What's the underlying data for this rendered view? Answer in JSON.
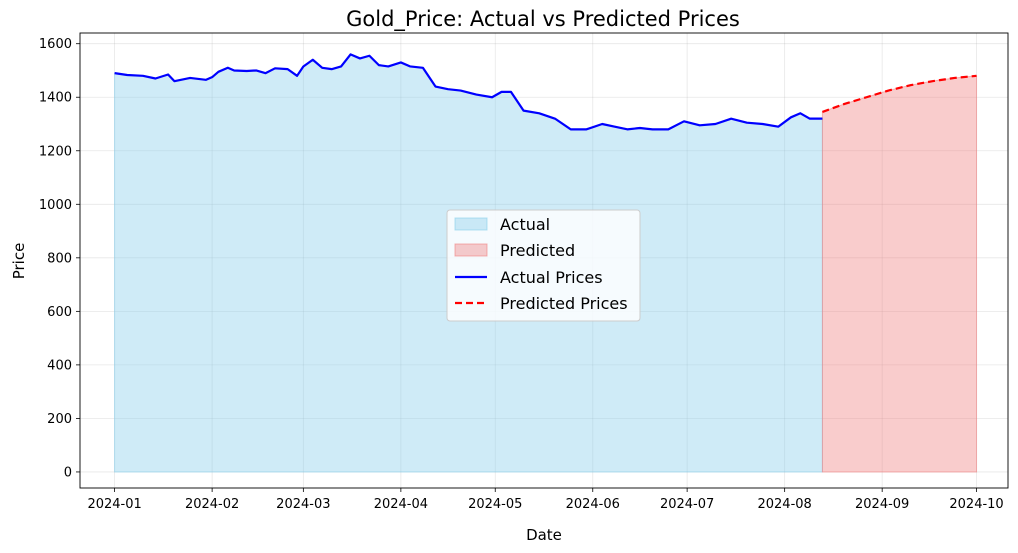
{
  "chart_data": {
    "type": "area",
    "title": "Gold_Price: Actual vs Predicted Prices",
    "xlabel": "Date",
    "ylabel": "Price",
    "xlim": [
      "2023-12-21",
      "2024-10-11"
    ],
    "ylim": [
      -60,
      1640
    ],
    "x_ticks": [
      "2024-01",
      "2024-02",
      "2024-03",
      "2024-04",
      "2024-05",
      "2024-06",
      "2024-07",
      "2024-08",
      "2024-09",
      "2024-10"
    ],
    "y_ticks": [
      0,
      200,
      400,
      600,
      800,
      1000,
      1200,
      1400,
      1600
    ],
    "grid": true,
    "legend_position": "center",
    "legend": [
      "Actual",
      "Predicted",
      "Actual Prices",
      "Predicted Prices"
    ],
    "colors": {
      "actual_line": "#0000ff",
      "actual_fill": "#87ceeb",
      "predicted_line": "#ff0000",
      "predicted_fill": "#f08080"
    },
    "series": [
      {
        "name": "Actual Prices",
        "style": "solid",
        "x": [
          "2024-01-01",
          "2024-01-05",
          "2024-01-10",
          "2024-01-14",
          "2024-01-18",
          "2024-01-20",
          "2024-01-25",
          "2024-01-30",
          "2024-02-01",
          "2024-02-03",
          "2024-02-06",
          "2024-02-08",
          "2024-02-12",
          "2024-02-15",
          "2024-02-18",
          "2024-02-21",
          "2024-02-25",
          "2024-02-28",
          "2024-03-01",
          "2024-03-04",
          "2024-03-07",
          "2024-03-10",
          "2024-03-13",
          "2024-03-16",
          "2024-03-19",
          "2024-03-22",
          "2024-03-25",
          "2024-03-28",
          "2024-04-01",
          "2024-04-04",
          "2024-04-08",
          "2024-04-12",
          "2024-04-16",
          "2024-04-20",
          "2024-04-25",
          "2024-04-30",
          "2024-05-03",
          "2024-05-06",
          "2024-05-10",
          "2024-05-15",
          "2024-05-20",
          "2024-05-25",
          "2024-05-30",
          "2024-06-04",
          "2024-06-08",
          "2024-06-12",
          "2024-06-16",
          "2024-06-20",
          "2024-06-25",
          "2024-06-30",
          "2024-07-05",
          "2024-07-10",
          "2024-07-15",
          "2024-07-20",
          "2024-07-25",
          "2024-07-30",
          "2024-08-03",
          "2024-08-06",
          "2024-08-09",
          "2024-08-13"
        ],
        "values": [
          1490,
          1483,
          1480,
          1470,
          1485,
          1460,
          1472,
          1465,
          1475,
          1495,
          1510,
          1500,
          1498,
          1500,
          1490,
          1508,
          1505,
          1480,
          1515,
          1540,
          1510,
          1505,
          1515,
          1560,
          1545,
          1555,
          1520,
          1515,
          1530,
          1515,
          1510,
          1440,
          1430,
          1425,
          1410,
          1400,
          1420,
          1420,
          1350,
          1340,
          1320,
          1280,
          1280,
          1300,
          1290,
          1280,
          1285,
          1280,
          1280,
          1310,
          1295,
          1300,
          1320,
          1305,
          1300,
          1290,
          1325,
          1340,
          1320,
          1320
        ]
      },
      {
        "name": "Predicted Prices",
        "style": "dashed",
        "x": [
          "2024-08-13",
          "2024-08-20",
          "2024-08-27",
          "2024-09-03",
          "2024-09-10",
          "2024-09-17",
          "2024-09-24",
          "2024-10-01"
        ],
        "values": [
          1345,
          1375,
          1400,
          1425,
          1445,
          1460,
          1472,
          1480
        ]
      }
    ]
  }
}
